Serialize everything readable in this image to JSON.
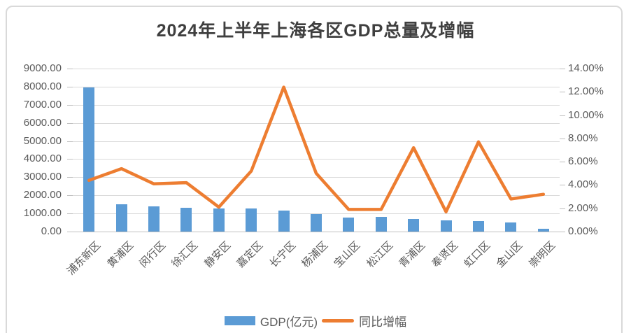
{
  "title": "2024年上半年上海各区GDP总量及增幅",
  "colors": {
    "bar": "#5b9bd5",
    "line": "#ed7d31",
    "gridline": "#d9d9d9",
    "axis_line": "#bfbfbf",
    "axis_text": "#595959",
    "title_text": "#3f3f3f",
    "frame_border": "#d9d9d9",
    "background": "#ffffff"
  },
  "legend": {
    "position": "bottom-center",
    "items": [
      {
        "label": "GDP(亿元)",
        "series": "gdp",
        "swatch": "bar"
      },
      {
        "label": "同比增幅",
        "series": "growth",
        "swatch": "line"
      }
    ]
  },
  "chart_data": {
    "type": "bar",
    "combo": "bar+line dual-axis",
    "title": "2024年上半年上海各区GDP总量及增幅",
    "categories": [
      "浦东新区",
      "黄浦区",
      "闵行区",
      "徐汇区",
      "静安区",
      "嘉定区",
      "长宁区",
      "杨浦区",
      "宝山区",
      "松江区",
      "青浦区",
      "奉贤区",
      "虹口区",
      "金山区",
      "崇明区"
    ],
    "series": [
      {
        "name": "GDP(亿元)",
        "type": "bar",
        "axis": "left",
        "color": "#5b9bd5",
        "values": [
          7950,
          1520,
          1380,
          1310,
          1290,
          1270,
          1150,
          960,
          790,
          820,
          700,
          600,
          585,
          490,
          170
        ]
      },
      {
        "name": "同比增幅",
        "type": "line",
        "axis": "right",
        "color": "#ed7d31",
        "unit": "%",
        "values": [
          4.4,
          5.4,
          4.1,
          4.2,
          2.1,
          5.2,
          12.4,
          5.0,
          1.9,
          1.9,
          7.2,
          1.7,
          7.7,
          2.8,
          3.2
        ]
      }
    ],
    "left_axis": {
      "min": 0,
      "max": 9000,
      "step": 1000,
      "tick_labels": [
        "9000.00",
        "8000.00",
        "7000.00",
        "6000.00",
        "5000.00",
        "4000.00",
        "3000.00",
        "2000.00",
        "1000.00",
        "0.00"
      ]
    },
    "right_axis": {
      "min": 0,
      "max": 14,
      "step": 2,
      "tick_labels": [
        "14.00%",
        "12.00%",
        "10.00%",
        "8.00%",
        "6.00%",
        "4.00%",
        "2.00%",
        "0.00%"
      ]
    },
    "grid": true,
    "gridlines": "horizontal, left-axis ticks",
    "legend_position": "bottom"
  }
}
